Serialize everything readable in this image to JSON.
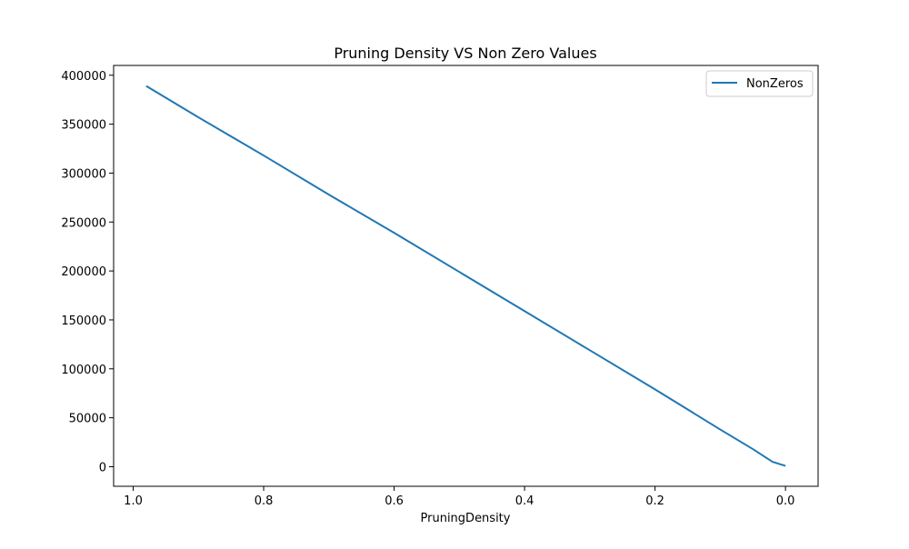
{
  "chart_data": {
    "type": "line",
    "title": "Pruning Density VS Non Zero Values",
    "xlabel": "PruningDensity",
    "ylabel": "",
    "x_inverted": true,
    "xlim": [
      1.03,
      -0.05
    ],
    "ylim": [
      -20000,
      410000
    ],
    "xticks": [
      1.0,
      0.8,
      0.6,
      0.4,
      0.2,
      0.0
    ],
    "xtick_labels": [
      "1.0",
      "0.8",
      "0.6",
      "0.4",
      "0.2",
      "0.0"
    ],
    "yticks": [
      0,
      50000,
      100000,
      150000,
      200000,
      250000,
      300000,
      350000,
      400000
    ],
    "ytick_labels": [
      "0",
      "50000",
      "100000",
      "150000",
      "200000",
      "250000",
      "300000",
      "350000",
      "400000"
    ],
    "grid": false,
    "legend_position": "top-right",
    "series": [
      {
        "name": "NonZeros",
        "color": "#1f77b4",
        "x": [
          0.98,
          0.9,
          0.8,
          0.7,
          0.6,
          0.5,
          0.4,
          0.3,
          0.2,
          0.1,
          0.05,
          0.02,
          0.0
        ],
        "y": [
          389000,
          357000,
          318000,
          278000,
          239000,
          199000,
          159000,
          119000,
          79000,
          38000,
          18000,
          5000,
          800
        ]
      }
    ]
  }
}
